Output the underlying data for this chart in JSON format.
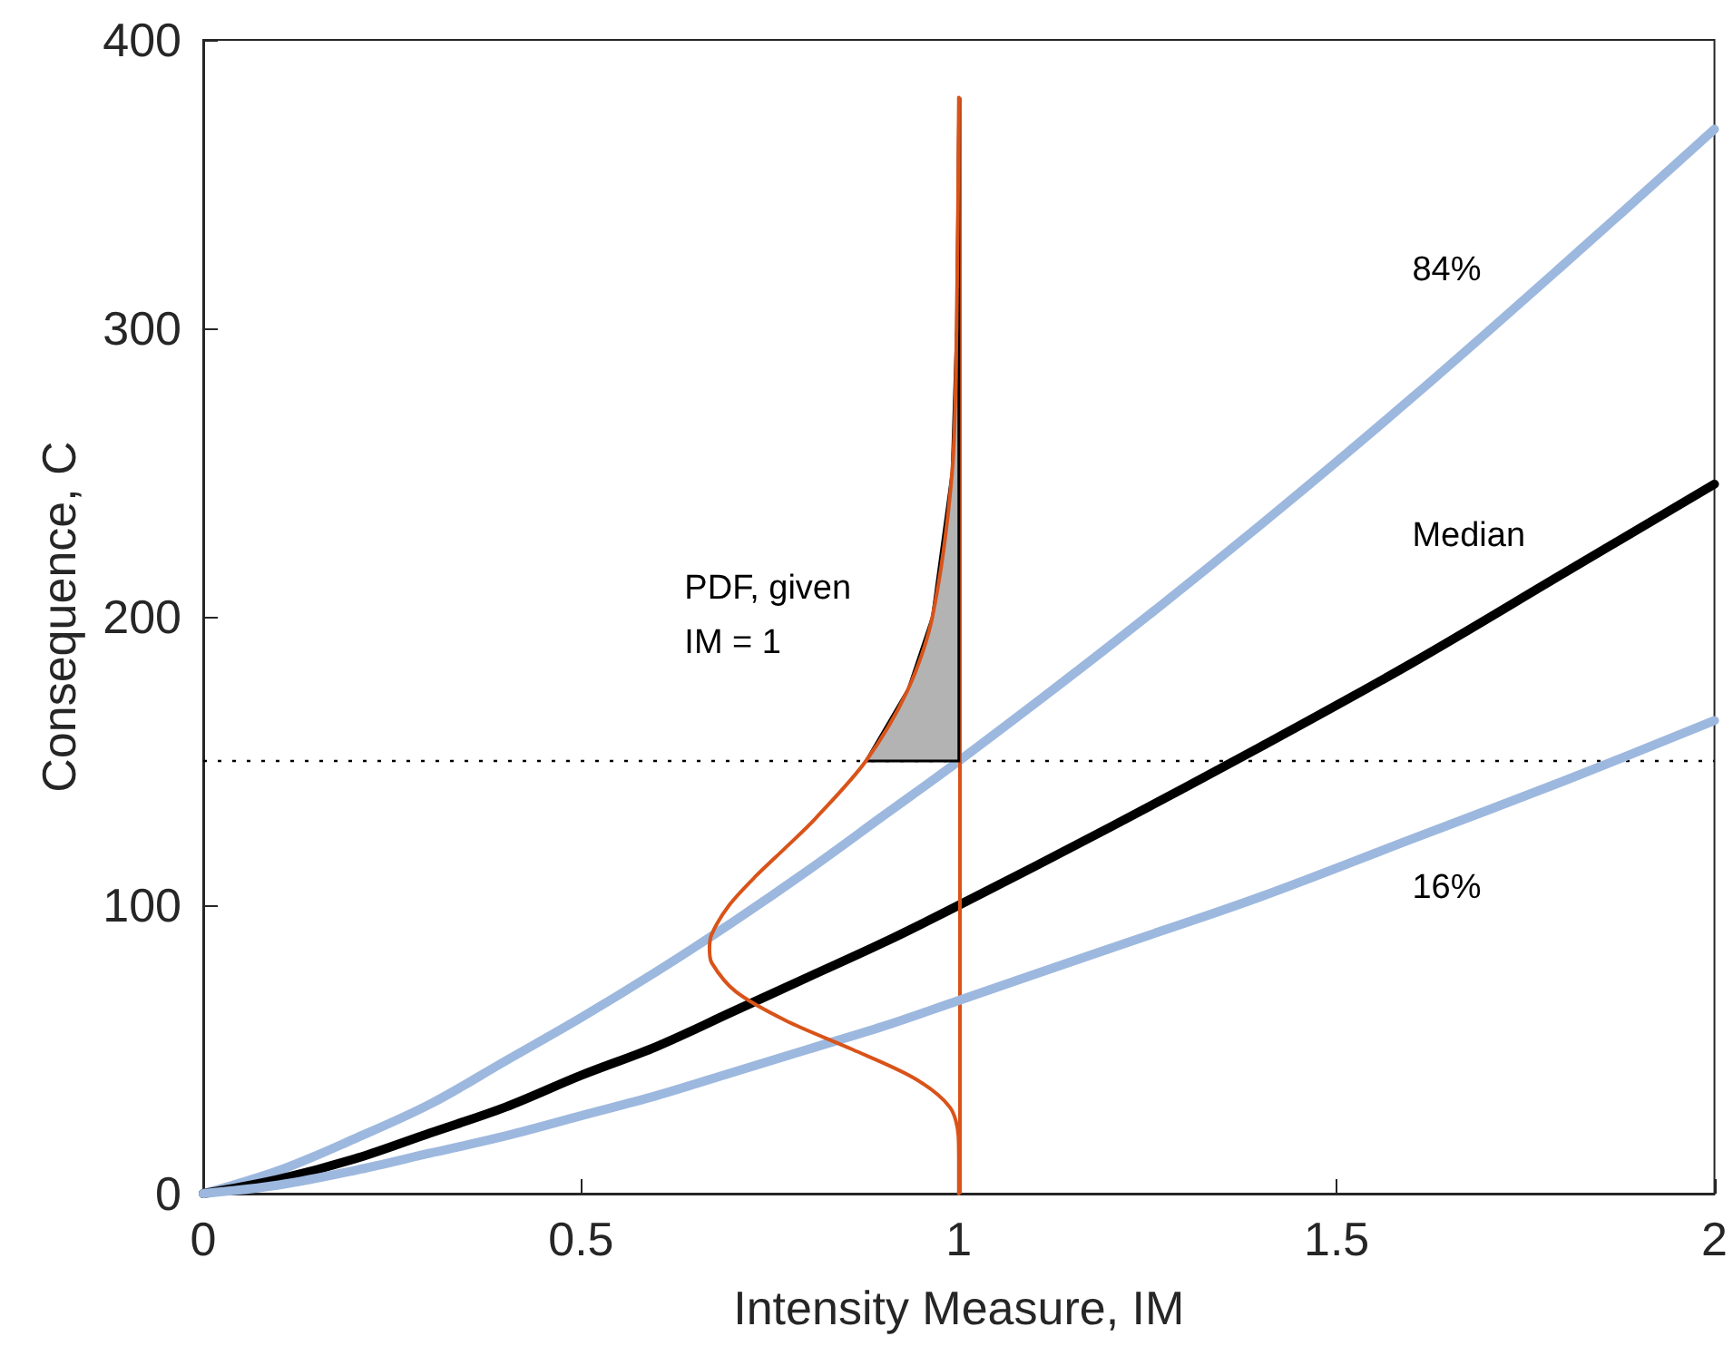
{
  "chart_data": {
    "type": "line",
    "xlabel": "Intensity Measure, IM",
    "ylabel": "Consequence, C",
    "xlim": [
      0,
      2
    ],
    "xticks": [
      0,
      0.5,
      1,
      1.5,
      2
    ],
    "ylim": [
      0,
      400
    ],
    "yticks": [
      0,
      100,
      200,
      300,
      400
    ],
    "grid": false,
    "legend": false,
    "marker": "none",
    "line_style": "solid",
    "series": [
      {
        "name": "84%",
        "color": "#9db8de",
        "x": [
          0,
          0.1,
          0.2,
          0.3,
          0.4,
          0.5,
          0.6,
          0.7,
          0.8,
          0.9,
          1,
          1.2,
          1.4,
          1.6,
          1.8,
          2
        ],
        "values": [
          0,
          8,
          19,
          31,
          46,
          61,
          77,
          94,
          112,
          131,
          150,
          190,
          232,
          276,
          322,
          369
        ]
      },
      {
        "name": "Median",
        "color": "#000000",
        "x": [
          0,
          0.1,
          0.2,
          0.3,
          0.4,
          0.5,
          0.6,
          0.7,
          0.8,
          0.9,
          1,
          1.2,
          1.4,
          1.6,
          1.8,
          2
        ],
        "values": [
          0,
          5,
          12,
          21,
          30,
          41,
          51,
          63,
          75,
          87,
          100,
          127,
          155,
          184,
          215,
          246
        ]
      },
      {
        "name": "16%",
        "color": "#9db8de",
        "x": [
          0,
          0.1,
          0.2,
          0.3,
          0.4,
          0.5,
          0.6,
          0.7,
          0.8,
          0.9,
          1,
          1.2,
          1.4,
          1.6,
          1.8,
          2
        ],
        "values": [
          0,
          3,
          8,
          14,
          20,
          27,
          34,
          42,
          50,
          58,
          67,
          85,
          103,
          123,
          143,
          164
        ]
      },
      {
        "type": "area",
        "color": "#b3b3b3",
        "x": [
          1,
          0.877,
          0.933,
          0.965,
          0.991,
          0.997,
          1
        ],
        "values": [
          150,
          150,
          175,
          200,
          250,
          300,
          380
        ]
      },
      {
        "color": "#d95319",
        "x": [
          1,
          1,
          0.9994,
          0.988,
          0.941,
          0.859,
          0.771,
          0.705,
          0.673,
          0.67,
          0.673,
          0.696,
          0.731,
          0.771,
          0.81,
          0.877,
          0.933,
          0.965,
          0.991,
          0.997,
          1
        ],
        "values": [
          0,
          10,
          20,
          30,
          40,
          50,
          60,
          70,
          80,
          85,
          90,
          100,
          110,
          120,
          130,
          150,
          175,
          200,
          250,
          300,
          380
        ]
      }
    ],
    "ref_lines": [
      {
        "axis": "y",
        "value": 150,
        "color": "#000000",
        "line_style": "dotted"
      },
      {
        "axis": "x",
        "value": 1,
        "color": "#d95319",
        "line_style": "solid"
      }
    ],
    "annotations": [
      "PDF, given\nIM = 1"
    ]
  }
}
